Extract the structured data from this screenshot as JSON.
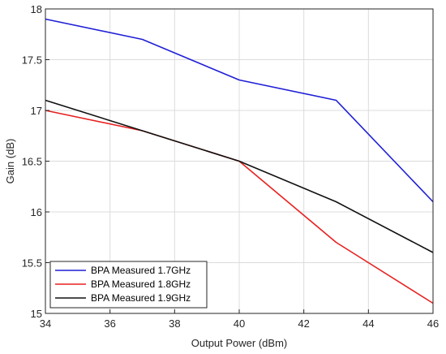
{
  "chart_data": {
    "type": "line",
    "title": "",
    "xlabel": "Output Power (dBm)",
    "ylabel": "Gain (dB)",
    "xlim": [
      34,
      46
    ],
    "ylim": [
      15,
      18
    ],
    "xticks": [
      34,
      36,
      38,
      40,
      42,
      44,
      46
    ],
    "yticks": [
      15,
      15.5,
      16,
      16.5,
      17,
      17.5,
      18
    ],
    "xtick_labels": [
      "34",
      "36",
      "38",
      "40",
      "42",
      "44",
      "46"
    ],
    "ytick_labels": [
      "15",
      "15.5",
      "16",
      "16.5",
      "17",
      "17.5",
      "18"
    ],
    "grid": true,
    "legend_position": "bottom-left",
    "series": [
      {
        "name": "BPA Measured 1.7GHz",
        "color": "#1f1fd6",
        "x": [
          34,
          37,
          40,
          43,
          46
        ],
        "y": [
          17.9,
          17.7,
          17.3,
          17.1,
          16.1
        ]
      },
      {
        "name": "BPA Measured 1.8GHz",
        "color": "#e82020",
        "x": [
          34,
          37,
          40,
          43,
          46
        ],
        "y": [
          17.0,
          16.8,
          16.5,
          15.7,
          15.1
        ]
      },
      {
        "name": "BPA Measured 1.9GHz",
        "color": "#111111",
        "x": [
          34,
          37,
          40,
          43,
          46
        ],
        "y": [
          17.1,
          16.8,
          16.5,
          16.1,
          15.6
        ]
      }
    ]
  }
}
